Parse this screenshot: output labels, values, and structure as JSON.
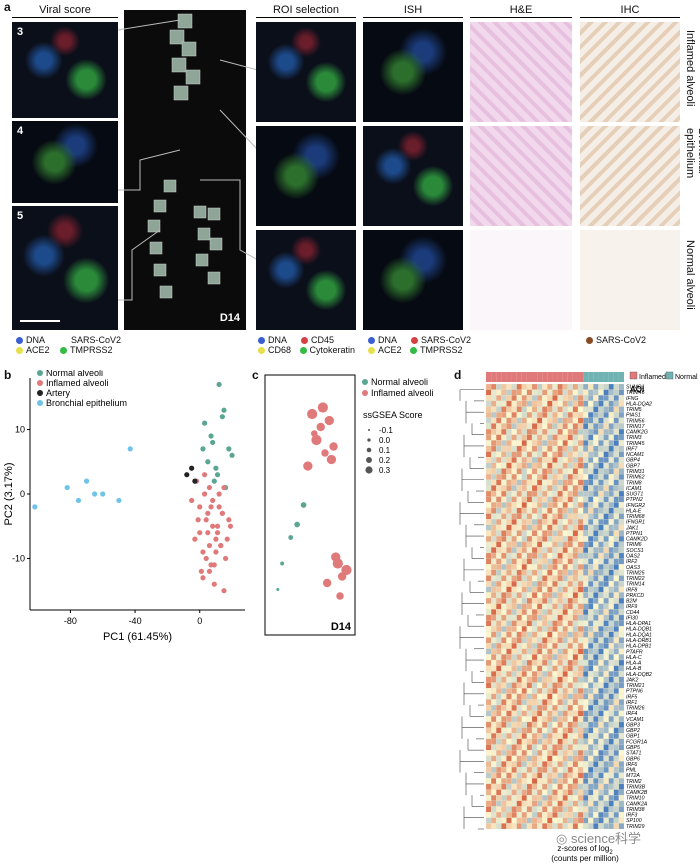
{
  "panel_a": {
    "letter": "a",
    "columns": [
      "Viral score",
      "",
      "ROI selection",
      "ISH",
      "H&E",
      "IHC"
    ],
    "viral_insets": [
      "3",
      "4",
      "5"
    ],
    "overview_label": "D14",
    "row_labels": [
      "Inflamed alveoli",
      "Bronchial epithelium",
      "Normal alveoli"
    ],
    "legend_viral": [
      "DNA",
      "SARS-CoV2",
      "ACE2",
      "TMPRSS2"
    ],
    "legend_roi": [
      "DNA",
      "CD45",
      "CD68",
      "Cytokeratin"
    ],
    "legend_ish": [
      "DNA",
      "SARS-CoV2",
      "ACE2",
      "TMPRSS2"
    ],
    "legend_ihc": [
      "SARS-CoV2"
    ],
    "colors": {
      "DNA": "#3a5fd0",
      "SARS-CoV2": "#d64242",
      "ACE2": "#e8e04a",
      "TMPRSS2": "#33bb44",
      "CD45": "#d64242",
      "CD68": "#e8e04a",
      "Cytokeratin": "#33bb44",
      "IHC": "#8a4a24"
    }
  },
  "panel_b": {
    "letter": "b",
    "chart_data": {
      "type": "scatter",
      "xlabel": "PC1 (61.45%)",
      "ylabel": "PC2 (3.17%)",
      "xticks": [
        "-80",
        "-40",
        "0"
      ],
      "yticks": [
        "10",
        "0",
        "-10"
      ],
      "xlim": [
        -105,
        28
      ],
      "ylim": [
        -18,
        18
      ],
      "series": [
        {
          "name": "Normal alveoli",
          "color": "#5aa692",
          "x": [
            12,
            15,
            3,
            8,
            20,
            5,
            18,
            10,
            7,
            14,
            11,
            9,
            2,
            16
          ],
          "y": [
            17,
            13,
            11,
            8,
            6,
            5,
            7,
            4,
            9,
            12,
            3,
            2,
            7,
            1
          ]
        },
        {
          "name": "Inflamed alveoli",
          "color": "#e07a7a",
          "x": [
            -2,
            3,
            5,
            8,
            12,
            15,
            18,
            -5,
            0,
            6,
            10,
            14,
            2,
            4,
            9,
            13,
            -1,
            7,
            11,
            16,
            1,
            6,
            3,
            8,
            12,
            19,
            -3,
            2,
            5,
            10,
            14,
            17,
            0,
            4,
            7,
            9,
            11,
            13,
            6,
            15
          ],
          "y": [
            2,
            0,
            -3,
            -5,
            -2,
            1,
            -4,
            -1,
            -6,
            -8,
            -7,
            -3,
            -9,
            -10,
            -11,
            -8,
            -4,
            -2,
            -6,
            -10,
            -12,
            1,
            3,
            -1,
            0,
            -5,
            -7,
            -13,
            -6,
            -9,
            -3,
            -7,
            -2,
            -4,
            -11,
            -14,
            -5,
            -8,
            -12,
            -15
          ]
        },
        {
          "name": "Artery",
          "color": "#222222",
          "x": [
            -8,
            -5,
            -3
          ],
          "y": [
            3,
            4,
            2
          ]
        },
        {
          "name": "Bronchial epithelium",
          "color": "#6fc3e8",
          "x": [
            -102,
            -75,
            -82,
            -70,
            -65,
            -50,
            -43,
            -60
          ],
          "y": [
            -2,
            -1,
            1,
            2,
            0,
            -1,
            7,
            0
          ]
        }
      ]
    }
  },
  "panel_c": {
    "letter": "c",
    "label": "D14",
    "legend_series": [
      "Normal alveoli",
      "Inflamed alveoli"
    ],
    "size_title": "ssGSEA Score",
    "size_levels": [
      "-0.1",
      "0.0",
      "0.1",
      "0.2",
      "0.3"
    ],
    "chart_data": {
      "type": "scatter",
      "series": [
        {
          "name": "Normal alveoli",
          "color": "#5aa692",
          "x": [
            -12,
            -8,
            -5,
            -14,
            -2
          ],
          "y": [
            -7,
            -3,
            -1,
            -11,
            2
          ],
          "score": [
            -0.05,
            0.0,
            0.05,
            -0.1,
            0.05
          ]
        },
        {
          "name": "Inflamed alveoli",
          "color": "#e07a7a",
          "x": [
            2,
            6,
            10,
            4,
            8,
            12,
            0,
            14,
            16,
            3,
            7,
            11,
            15,
            18,
            9,
            13
          ],
          "y": [
            16,
            14,
            15,
            12,
            10,
            11,
            8,
            -7,
            -9,
            13,
            17,
            9,
            -12,
            -8,
            -10,
            -6
          ],
          "score": [
            0.3,
            0.2,
            0.25,
            0.3,
            0.15,
            0.2,
            0.25,
            0.3,
            0.2,
            0.1,
            0.3,
            0.25,
            0.15,
            0.3,
            0.2,
            0.25
          ]
        }
      ]
    }
  },
  "panel_d": {
    "letter": "d",
    "aoi_label": "AOI",
    "aoi_legend": [
      "Inflamed",
      "Normal"
    ],
    "xlabel_line1": "z-scores of log",
    "xlabel_sub": "2",
    "xlabel_line2": "(counts per million)",
    "genes": [
      "SUMO1",
      "TRIM46",
      "IFNG",
      "HLA-DQA2",
      "TRIM5",
      "PIAS1",
      "TRIM56",
      "TRIM17",
      "CAMK2G",
      "TRIM3",
      "TRIM45",
      "IRF7",
      "NCAM1",
      "GBP4",
      "GBP7",
      "TRIM31",
      "TRIM62",
      "TRIM8",
      "ICAM1",
      "SUGT1",
      "PTPN2",
      "IFNGR2",
      "HLA-E",
      "TRIM68",
      "IFNGR1",
      "JAK1",
      "PTPN1",
      "CAMK2D",
      "TRIM6",
      "SOCS1",
      "OAS2",
      "IRF2",
      "OAS3",
      "TRIM25",
      "TRIM22",
      "TRIM14",
      "IRF8",
      "PRKCD",
      "B2M",
      "IRF9",
      "CD44",
      "IFI30",
      "HLA-DPA1",
      "HLA-DQB1",
      "HLA-DQA1",
      "HLA-DRB1",
      "HLA-DPB1",
      "PTAFR",
      "HLA-C",
      "HLA-A",
      "HLA-B",
      "HLA-DQB2",
      "JAK2",
      "TRIM21",
      "PTPN6",
      "IRF5",
      "IRF1",
      "TRIM26",
      "IRF4",
      "VCAM1",
      "GBP3",
      "GBP2",
      "GBP1",
      "FCGR1A",
      "GBP5",
      "STAT1",
      "GBP6",
      "IRF6",
      "PML",
      "MT2A",
      "TRIM2",
      "TRIM3B",
      "CAMK2B",
      "TRIM10",
      "CAMK2A",
      "TRIM38",
      "IRF3",
      "SP100",
      "TRIM29"
    ],
    "n_inflamed_cols": 19,
    "n_normal_cols": 8,
    "colors": {
      "inflamed": "#e07a7a",
      "normal": "#6fb3b3",
      "low": "#4a7fc0",
      "mid": "#fdf8d0",
      "high": "#d24a2a"
    }
  },
  "watermark": "science科学"
}
